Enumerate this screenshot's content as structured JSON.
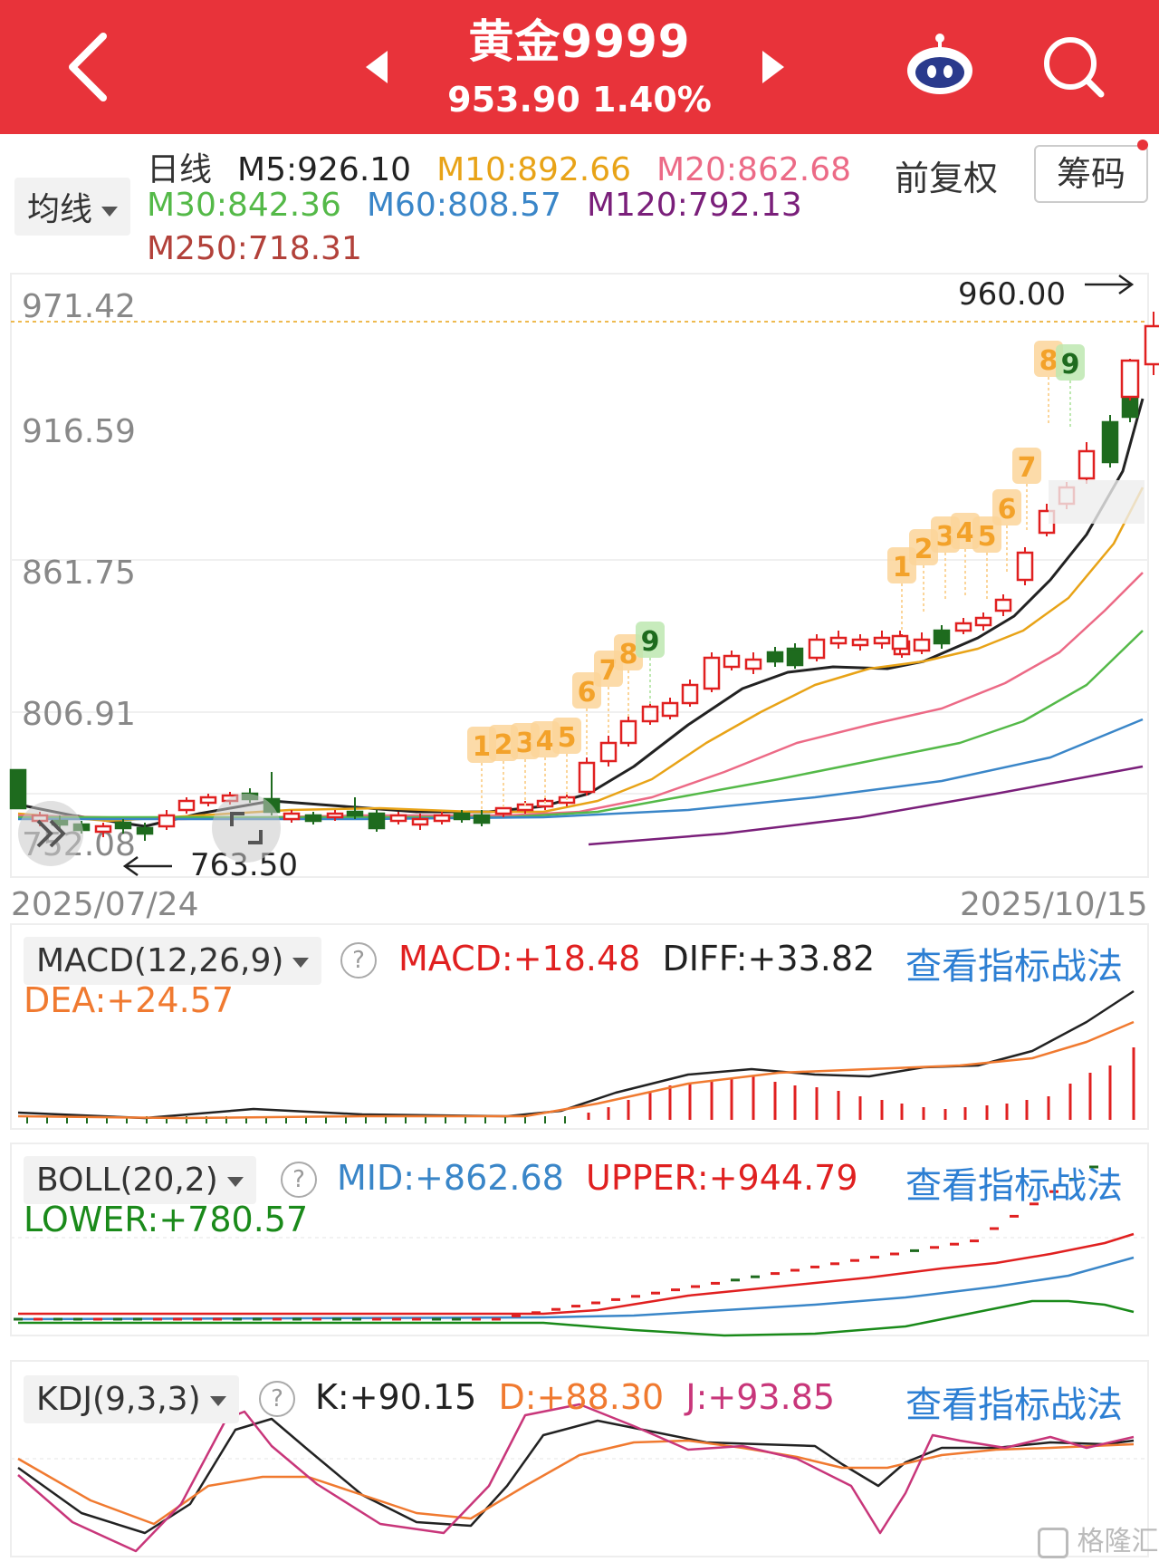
{
  "header": {
    "title": "黄金9999",
    "price": "953.90",
    "change_pct": "1.40%"
  },
  "indicator_bar": {
    "dropdown_label": "均线",
    "period": "日线",
    "ma": [
      {
        "label": "M5:926.10",
        "color": "#222222"
      },
      {
        "label": "M10:892.66",
        "color": "#e8a317"
      },
      {
        "label": "M20:862.68",
        "color": "#ec6a86"
      },
      {
        "label": "M30:842.36",
        "color": "#54b948"
      },
      {
        "label": "M60:808.57",
        "color": "#3a86c8"
      },
      {
        "label": "M120:792.13",
        "color": "#7a1f7a"
      },
      {
        "label": "M250:718.31",
        "color": "#b2413a"
      }
    ],
    "fuquan": "前复权",
    "chouma": "筹码"
  },
  "main_chart": {
    "y_ticks": [
      "971.42",
      "916.59",
      "861.75",
      "806.91",
      "752.08"
    ],
    "high_label": "960.00",
    "low_label": "763.50",
    "start_date": "2025/07/24",
    "end_date": "2025/10/15",
    "td_counts_first": [
      "1",
      "2",
      "3",
      "4",
      "5",
      "6",
      "7",
      "8",
      "9"
    ],
    "td_counts_second": [
      "1",
      "2",
      "3",
      "4",
      "5",
      "6",
      "7",
      "8",
      "9"
    ]
  },
  "macd": {
    "dropdown": "MACD(12,26,9)",
    "help": "?",
    "macd": "MACD:+18.48",
    "diff": "DIFF:+33.82",
    "dea": "DEA:+24.57",
    "link": "查看指标战法"
  },
  "boll": {
    "dropdown": "BOLL(20,2)",
    "help": "?",
    "mid": "MID:+862.68",
    "upper": "UPPER:+944.79",
    "lower": "LOWER:+780.57",
    "link": "查看指标战法"
  },
  "kdj": {
    "dropdown": "KDJ(9,3,3)",
    "help": "?",
    "k": "K:+90.15",
    "d": "D:+88.30",
    "j": "J:+93.85",
    "link": "查看指标战法"
  },
  "watermark": "格隆汇",
  "colors": {
    "header_bg": "#e8333a",
    "up": "#e02020",
    "down": "#1e6b1e",
    "link": "#2d7fd3"
  }
}
